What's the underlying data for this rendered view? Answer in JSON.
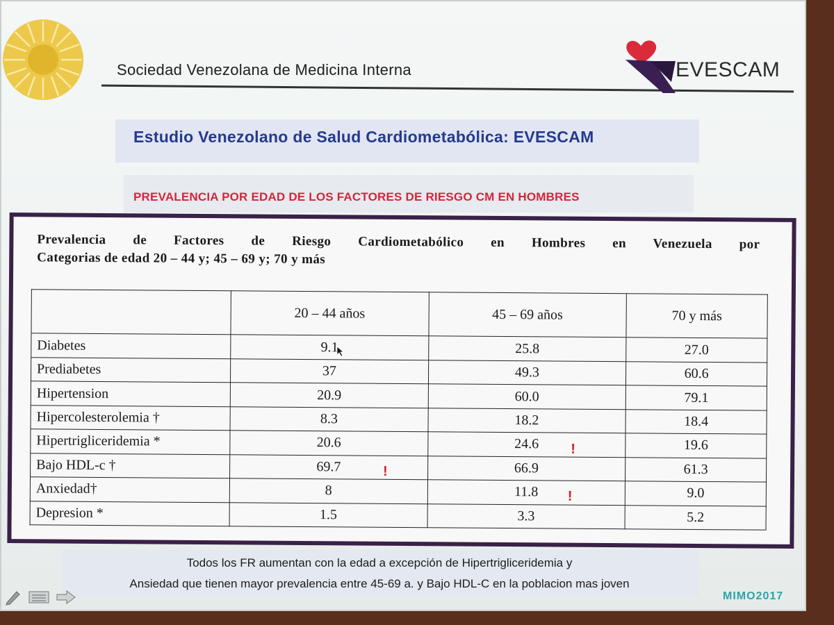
{
  "header": {
    "org_name": "Sociedad Venezolana de Medicina Interna",
    "brand": "EVESCAM"
  },
  "slide": {
    "title": "Estudio Venezolano de  Salud Cardiometabólica: EVESCAM",
    "subtitle": "PREVALENCIA POR EDAD DE LOS FACTORES DE RIESGO CM EN HOMBRES"
  },
  "table": {
    "title_line1": "Prevalencia de Factores de Riesgo Cardiometabólico en Hombres en Venezuela por",
    "title_line2": "Categorias de edad  20 – 44 y; 45 – 69 y; 70 y más",
    "columns": [
      "",
      "20 – 44 años",
      "45 – 69 años",
      "70 y más"
    ],
    "rows": [
      {
        "factor": "Diabetes",
        "v1": "9.1",
        "v2": "25.8",
        "v3": "27.0"
      },
      {
        "factor": "Prediabetes",
        "v1": "37",
        "v2": "49.3",
        "v3": "60.6"
      },
      {
        "factor": "Hipertension",
        "v1": "20.9",
        "v2": "60.0",
        "v3": "79.1"
      },
      {
        "factor": "Hipercolesterolemia †",
        "v1": "8.3",
        "v2": "18.2",
        "v3": "18.4"
      },
      {
        "factor": "Hipertrigliceridemia *",
        "v1": "20.6",
        "v2": "24.6",
        "v3": "19.6"
      },
      {
        "factor": "Bajo HDL-c †",
        "v1": "69.7",
        "v2": "66.9",
        "v3": "61.3"
      },
      {
        "factor": "Anxiedad†",
        "v1": "8",
        "v2": "11.8",
        "v3": "9.0"
      },
      {
        "factor": "Depresion *",
        "v1": "1.5",
        "v2": "3.3",
        "v3": "5.2"
      }
    ],
    "highlight_mark": "!",
    "highlight_color": "#e01822"
  },
  "footer": {
    "line1": "Todos los FR aumentan con la edad a excepción de Hipertrigliceridemia y",
    "line2": "Ansiedad que  tienen mayor prevalencia entre 45-69 a. y Bajo HDL-C en la poblacion mas joven",
    "event": "MIMO2017"
  },
  "colors": {
    "title_blue": "#243a8e",
    "subtitle_red": "#d3263a",
    "frame_purple": "#3a2148",
    "logo_gold": "#e8c23a"
  }
}
